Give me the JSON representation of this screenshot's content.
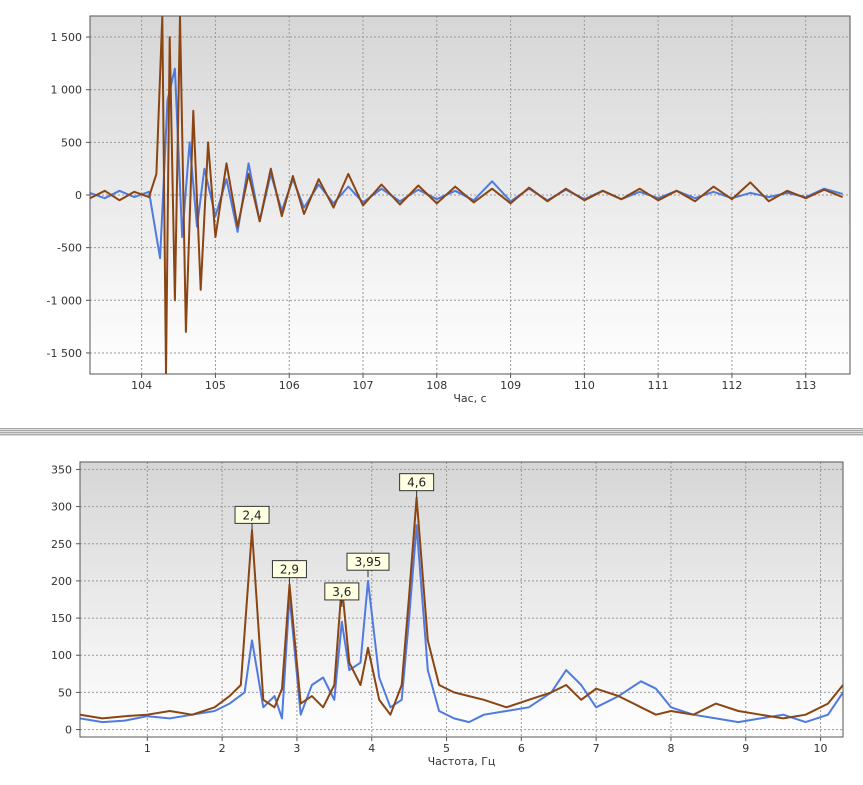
{
  "chart_data": [
    {
      "type": "line",
      "xlabel": "Час, с",
      "ylabel": "",
      "xlim": [
        103.3,
        113.6
      ],
      "ylim": [
        -1700,
        1700
      ],
      "x_ticks": [
        104,
        105,
        106,
        107,
        108,
        109,
        110,
        111,
        112,
        113
      ],
      "x_tick_labels": [
        "104",
        "105",
        "106",
        "107",
        "108",
        "109",
        "110",
        "111",
        "112",
        "113"
      ],
      "y_ticks": [
        1500,
        1000,
        500,
        0,
        -500,
        -1000,
        -1500
      ],
      "y_tick_labels": [
        "1 500",
        "1 000",
        "500",
        "0",
        "-500",
        "-1 000",
        "-1 500"
      ],
      "grid": true,
      "series": [
        {
          "color": "#4f7be0",
          "x": [
            103.3,
            103.5,
            103.7,
            103.9,
            104.1,
            104.25,
            104.35,
            104.45,
            104.55,
            104.65,
            104.75,
            104.85,
            105.0,
            105.15,
            105.3,
            105.45,
            105.6,
            105.75,
            105.9,
            106.05,
            106.2,
            106.4,
            106.6,
            106.8,
            107.0,
            107.25,
            107.5,
            107.75,
            108.0,
            108.25,
            108.5,
            108.75,
            109.0,
            109.25,
            109.5,
            109.75,
            110.0,
            110.25,
            110.5,
            110.75,
            111.0,
            111.25,
            111.5,
            111.75,
            112.0,
            112.25,
            112.5,
            112.75,
            113.0,
            113.25,
            113.5
          ],
          "y": [
            20,
            -30,
            40,
            -20,
            30,
            -600,
            900,
            1200,
            -400,
            500,
            -300,
            250,
            -200,
            150,
            -350,
            300,
            -250,
            200,
            -150,
            150,
            -120,
            100,
            -80,
            80,
            -70,
            60,
            -60,
            50,
            -40,
            40,
            -50,
            130,
            -60,
            60,
            -50,
            50,
            -40,
            40,
            -40,
            30,
            -30,
            40,
            -30,
            30,
            -30,
            20,
            -20,
            20,
            -20,
            60,
            10
          ]
        },
        {
          "color": "#8b4513",
          "x": [
            103.3,
            103.5,
            103.7,
            103.9,
            104.1,
            104.2,
            104.28,
            104.33,
            104.38,
            104.45,
            104.52,
            104.6,
            104.7,
            104.8,
            104.9,
            105.0,
            105.15,
            105.3,
            105.45,
            105.6,
            105.75,
            105.9,
            106.05,
            106.2,
            106.4,
            106.6,
            106.8,
            107.0,
            107.25,
            107.5,
            107.75,
            108.0,
            108.25,
            108.5,
            108.75,
            109.0,
            109.25,
            109.5,
            109.75,
            110.0,
            110.25,
            110.5,
            110.75,
            111.0,
            111.25,
            111.5,
            111.75,
            112.0,
            112.25,
            112.5,
            112.75,
            113.0,
            113.25,
            113.5
          ],
          "y": [
            -30,
            40,
            -50,
            30,
            -20,
            200,
            1700,
            -1700,
            1500,
            -1000,
            1700,
            -1300,
            800,
            -900,
            500,
            -400,
            300,
            -300,
            200,
            -250,
            250,
            -200,
            180,
            -180,
            150,
            -120,
            200,
            -100,
            100,
            -90,
            90,
            -80,
            80,
            -70,
            60,
            -80,
            70,
            -60,
            60,
            -50,
            40,
            -40,
            60,
            -50,
            40,
            -60,
            80,
            -40,
            120,
            -60,
            40,
            -30,
            50,
            -20
          ]
        }
      ]
    },
    {
      "type": "line",
      "xlabel": "Частота, Гц",
      "ylabel": "",
      "xlim": [
        0.1,
        10.3
      ],
      "ylim": [
        -10,
        360
      ],
      "x_ticks": [
        1,
        2,
        3,
        4,
        5,
        6,
        7,
        8,
        9,
        10
      ],
      "x_tick_labels": [
        "1",
        "2",
        "3",
        "4",
        "5",
        "6",
        "7",
        "8",
        "9",
        "10"
      ],
      "y_ticks": [
        0,
        50,
        100,
        150,
        200,
        250,
        300,
        350
      ],
      "y_tick_labels": [
        "0",
        "50",
        "100",
        "150",
        "200",
        "250",
        "300",
        "350"
      ],
      "grid": true,
      "annotations": [
        {
          "text": "2,4",
          "x": 2.4,
          "y": 268
        },
        {
          "text": "2,9",
          "x": 2.9,
          "y": 195
        },
        {
          "text": "3,6",
          "x": 3.6,
          "y": 165
        },
        {
          "text": "3,95",
          "x": 3.95,
          "y": 205
        },
        {
          "text": "4,6",
          "x": 4.6,
          "y": 312
        }
      ],
      "series": [
        {
          "color": "#4f7be0",
          "x": [
            0.1,
            0.4,
            0.7,
            1.0,
            1.3,
            1.6,
            1.9,
            2.1,
            2.3,
            2.4,
            2.55,
            2.7,
            2.8,
            2.9,
            3.05,
            3.2,
            3.35,
            3.5,
            3.6,
            3.7,
            3.85,
            3.95,
            4.1,
            4.25,
            4.4,
            4.5,
            4.6,
            4.75,
            4.9,
            5.1,
            5.3,
            5.5,
            5.8,
            6.1,
            6.4,
            6.6,
            6.8,
            7.0,
            7.3,
            7.6,
            7.8,
            8.0,
            8.3,
            8.6,
            8.9,
            9.2,
            9.5,
            9.8,
            10.1,
            10.3
          ],
          "y": [
            15,
            10,
            12,
            18,
            15,
            20,
            25,
            35,
            50,
            120,
            30,
            45,
            15,
            180,
            20,
            60,
            70,
            40,
            145,
            80,
            90,
            200,
            70,
            30,
            40,
            150,
            275,
            80,
            25,
            15,
            10,
            20,
            25,
            30,
            50,
            80,
            60,
            30,
            45,
            65,
            55,
            30,
            20,
            15,
            10,
            15,
            20,
            10,
            20,
            50
          ]
        },
        {
          "color": "#8b4513",
          "x": [
            0.1,
            0.4,
            0.7,
            1.0,
            1.3,
            1.6,
            1.9,
            2.1,
            2.25,
            2.4,
            2.55,
            2.7,
            2.8,
            2.9,
            3.05,
            3.2,
            3.35,
            3.5,
            3.6,
            3.7,
            3.85,
            3.95,
            4.1,
            4.25,
            4.4,
            4.5,
            4.6,
            4.75,
            4.9,
            5.1,
            5.3,
            5.5,
            5.8,
            6.1,
            6.4,
            6.6,
            6.8,
            7.0,
            7.3,
            7.6,
            7.8,
            8.0,
            8.3,
            8.6,
            8.9,
            9.2,
            9.5,
            9.8,
            10.1,
            10.3
          ],
          "y": [
            20,
            15,
            18,
            20,
            25,
            20,
            30,
            45,
            60,
            268,
            40,
            30,
            55,
            195,
            35,
            45,
            30,
            60,
            195,
            90,
            60,
            110,
            40,
            20,
            60,
            180,
            312,
            120,
            60,
            50,
            45,
            40,
            30,
            40,
            50,
            60,
            40,
            55,
            45,
            30,
            20,
            25,
            20,
            35,
            25,
            20,
            15,
            20,
            35,
            60
          ]
        }
      ]
    }
  ]
}
